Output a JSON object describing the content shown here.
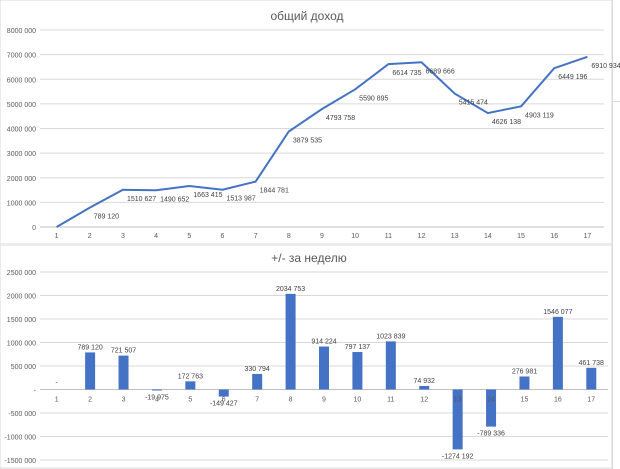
{
  "chart_data": [
    {
      "type": "line",
      "title": "общий доход",
      "x": [
        "1",
        "2",
        "3",
        "4",
        "5",
        "6",
        "7",
        "8",
        "9",
        "10",
        "11",
        "12",
        "13",
        "14",
        "15",
        "16",
        "17"
      ],
      "values": [
        0,
        789120,
        1510627,
        1490652,
        1663415,
        1513987,
        1844781,
        3879535,
        4793758,
        5590895,
        6614735,
        6689666,
        5415474,
        4626138,
        4903119,
        6449196,
        6910934
      ],
      "labels": [
        "",
        "789 120",
        "1510 627",
        "1490 652",
        "1663 415",
        "1513 987",
        "1844 781",
        "3879 535",
        "4793 758",
        "5590 895",
        "6614 735",
        "6689 666",
        "5415 474",
        "4626 138",
        "4903 119",
        "6449 196",
        "6910 934"
      ],
      "yticks": [
        "0",
        "1000 000",
        "2000 000",
        "3000 000",
        "4000 000",
        "5000 000",
        "6000 000",
        "7000 000",
        "8000 000"
      ],
      "ylim": [
        0,
        8000000
      ],
      "color": "#4472c4",
      "grid": true
    },
    {
      "type": "bar",
      "title": "+/- за неделю",
      "categories": [
        "1",
        "2",
        "3",
        "4",
        "5",
        "6",
        "7",
        "8",
        "9",
        "10",
        "11",
        "12",
        "13",
        "14",
        "15",
        "16",
        "17"
      ],
      "values": [
        0,
        789120,
        721507,
        -19975,
        172763,
        -149427,
        330794,
        2034753,
        914224,
        797137,
        1023839,
        74932,
        -1274192,
        -789336,
        276981,
        1546077,
        461738
      ],
      "labels": [
        "-",
        "789 120",
        "721 507",
        "-19 975",
        "172 763",
        "-149 427",
        "330 794",
        "2034 753",
        "914 224",
        "797 137",
        "1023 839",
        "74 932",
        "-1274 192",
        "-789 336",
        "276 981",
        "1546 077",
        "461 738"
      ],
      "yticks": [
        "-1500 000",
        "-1000 000",
        "-500 000",
        "-",
        "500 000",
        "1000 000",
        "1500 000",
        "2000 000",
        "2500 000"
      ],
      "ylim": [
        -1500000,
        2500000
      ],
      "color": "#4472c4",
      "grid": true
    }
  ]
}
